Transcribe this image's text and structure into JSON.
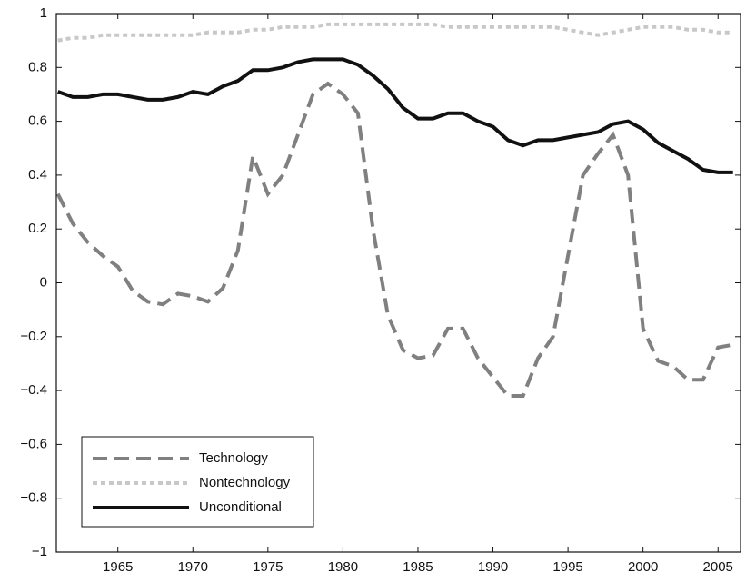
{
  "chart_data": {
    "type": "line",
    "x": [
      1961,
      1962,
      1963,
      1964,
      1965,
      1966,
      1967,
      1968,
      1969,
      1970,
      1971,
      1972,
      1973,
      1974,
      1975,
      1976,
      1977,
      1978,
      1979,
      1980,
      1981,
      1982,
      1983,
      1984,
      1985,
      1986,
      1987,
      1988,
      1989,
      1990,
      1991,
      1992,
      1993,
      1994,
      1995,
      1996,
      1997,
      1998,
      1999,
      2000,
      2001,
      2002,
      2003,
      2004,
      2005,
      2006
    ],
    "series": [
      {
        "name": "Technology",
        "color": "#808080",
        "dash": "dashed",
        "values": [
          0.33,
          0.22,
          0.15,
          0.1,
          0.06,
          -0.03,
          -0.07,
          -0.08,
          -0.04,
          -0.05,
          -0.07,
          -0.02,
          0.12,
          0.47,
          0.33,
          0.4,
          0.55,
          0.7,
          0.74,
          0.7,
          0.63,
          0.2,
          -0.12,
          -0.25,
          -0.28,
          -0.27,
          -0.17,
          -0.17,
          -0.28,
          -0.35,
          -0.42,
          -0.42,
          -0.28,
          -0.2,
          0.1,
          0.4,
          0.48,
          0.55,
          0.4,
          -0.17,
          -0.29,
          -0.31,
          -0.36,
          -0.36,
          -0.24,
          -0.23
        ]
      },
      {
        "name": "Nontechnology",
        "color": "#c8c8c8",
        "dash": "dotted",
        "values": [
          0.9,
          0.91,
          0.91,
          0.92,
          0.92,
          0.92,
          0.92,
          0.92,
          0.92,
          0.92,
          0.93,
          0.93,
          0.93,
          0.94,
          0.94,
          0.95,
          0.95,
          0.95,
          0.96,
          0.96,
          0.96,
          0.96,
          0.96,
          0.96,
          0.96,
          0.96,
          0.95,
          0.95,
          0.95,
          0.95,
          0.95,
          0.95,
          0.95,
          0.95,
          0.94,
          0.93,
          0.92,
          0.93,
          0.94,
          0.95,
          0.95,
          0.95,
          0.94,
          0.94,
          0.93,
          0.93
        ]
      },
      {
        "name": "Unconditional",
        "color": "#111111",
        "dash": "solid",
        "values": [
          0.71,
          0.69,
          0.69,
          0.7,
          0.7,
          0.69,
          0.68,
          0.68,
          0.69,
          0.71,
          0.7,
          0.73,
          0.75,
          0.79,
          0.79,
          0.8,
          0.82,
          0.83,
          0.83,
          0.83,
          0.81,
          0.77,
          0.72,
          0.65,
          0.61,
          0.61,
          0.63,
          0.63,
          0.6,
          0.58,
          0.53,
          0.51,
          0.53,
          0.53,
          0.54,
          0.55,
          0.56,
          0.59,
          0.6,
          0.57,
          0.52,
          0.49,
          0.46,
          0.42,
          0.41,
          0.41
        ]
      }
    ],
    "xlim": [
      1960.9,
      2006.5
    ],
    "xticks": [
      1965,
      1970,
      1975,
      1980,
      1985,
      1990,
      1995,
      2000,
      2005
    ],
    "ylim": [
      -1,
      1
    ],
    "yticks": [
      {
        "value": -1,
        "label": "−1"
      },
      {
        "value": -0.8,
        "label": "−0.8"
      },
      {
        "value": -0.6,
        "label": "−0.6"
      },
      {
        "value": -0.4,
        "label": "−0.4"
      },
      {
        "value": -0.2,
        "label": "−0.2"
      },
      0,
      0.2,
      0.4,
      0.6,
      0.8,
      1
    ],
    "legend": "lower left",
    "grid": false
  }
}
